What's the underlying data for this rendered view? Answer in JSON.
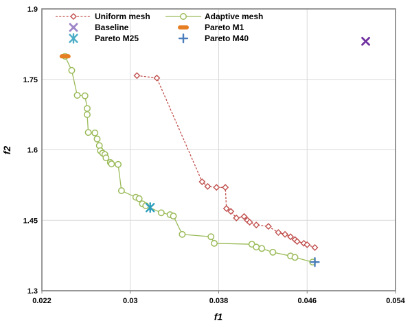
{
  "chart_data": {
    "type": "scatter",
    "title": "",
    "xlabel": "f1",
    "ylabel": "f2",
    "xlim": [
      0.022,
      0.054
    ],
    "ylim": [
      1.3,
      1.9
    ],
    "x_ticks": [
      0.022,
      0.03,
      0.038,
      0.046,
      0.054
    ],
    "x_tick_labels": [
      "0.022",
      "0.03",
      "0.038",
      "0.046",
      "0.054"
    ],
    "y_ticks": [
      1.3,
      1.45,
      1.6,
      1.75,
      1.9
    ],
    "y_tick_labels": [
      "1.3",
      "1.45",
      "1.6",
      "1.75",
      "1.9"
    ],
    "grid": true,
    "legend_position": "inside-top-left",
    "colors": {
      "grid": "#D9D9D9",
      "border": "#7F7F7F",
      "text": "#000000",
      "background": "#FFFFFF"
    },
    "series": [
      {
        "name": "Uniform mesh",
        "marker": "diamond-open",
        "line": "dashed",
        "color": "#C0504D",
        "points": [
          [
            0.0306,
            1.758
          ],
          [
            0.0324,
            1.753
          ],
          [
            0.0365,
            1.532
          ],
          [
            0.037,
            1.522
          ],
          [
            0.0378,
            1.52
          ],
          [
            0.0386,
            1.52
          ],
          [
            0.0387,
            1.475
          ],
          [
            0.0391,
            1.469
          ],
          [
            0.0396,
            1.455
          ],
          [
            0.0403,
            1.458
          ],
          [
            0.0406,
            1.45
          ],
          [
            0.0408,
            1.446
          ],
          [
            0.0414,
            1.44
          ],
          [
            0.0425,
            1.437
          ],
          [
            0.0434,
            1.424
          ],
          [
            0.044,
            1.42
          ],
          [
            0.0445,
            1.415
          ],
          [
            0.0449,
            1.409
          ],
          [
            0.0451,
            1.405
          ],
          [
            0.0457,
            1.401
          ],
          [
            0.046,
            1.398
          ],
          [
            0.0467,
            1.392
          ]
        ]
      },
      {
        "name": "Adaptive mesh",
        "marker": "circle-open",
        "line": "solid",
        "color": "#9BBB59",
        "points": [
          [
            0.0241,
            1.799
          ],
          [
            0.0247,
            1.769
          ],
          [
            0.0252,
            1.716
          ],
          [
            0.0259,
            1.715
          ],
          [
            0.0261,
            1.688
          ],
          [
            0.0261,
            1.675
          ],
          [
            0.0262,
            1.637
          ],
          [
            0.0268,
            1.636
          ],
          [
            0.027,
            1.623
          ],
          [
            0.0272,
            1.609
          ],
          [
            0.0273,
            1.598
          ],
          [
            0.0275,
            1.593
          ],
          [
            0.0277,
            1.59
          ],
          [
            0.0278,
            1.583
          ],
          [
            0.0282,
            1.573
          ],
          [
            0.0283,
            1.57
          ],
          [
            0.0289,
            1.569
          ],
          [
            0.0292,
            1.513
          ],
          [
            0.0305,
            1.499
          ],
          [
            0.0308,
            1.496
          ],
          [
            0.0311,
            1.485
          ],
          [
            0.0314,
            1.481
          ],
          [
            0.0328,
            1.466
          ],
          [
            0.0336,
            1.462
          ],
          [
            0.0339,
            1.459
          ],
          [
            0.0347,
            1.42
          ],
          [
            0.0373,
            1.415
          ],
          [
            0.0376,
            1.401
          ],
          [
            0.041,
            1.399
          ],
          [
            0.0414,
            1.393
          ],
          [
            0.0419,
            1.39
          ],
          [
            0.0429,
            1.382
          ],
          [
            0.0445,
            1.374
          ],
          [
            0.0449,
            1.371
          ],
          [
            0.0465,
            1.361
          ]
        ]
      },
      {
        "name": "Baseline",
        "marker": "x",
        "line": "none",
        "color": "#7030A0",
        "legend_color": "#9D85C8",
        "points": [
          [
            0.0513,
            1.831
          ]
        ]
      },
      {
        "name": "Pareto M1",
        "marker": "thick-dash",
        "line": "none",
        "color": "#E67E22",
        "points": [
          [
            0.0241,
            1.799
          ]
        ]
      },
      {
        "name": "Pareto M25",
        "marker": "star",
        "line": "none",
        "color": "#2C9EBC",
        "legend_color": "#4BACC6",
        "points": [
          [
            0.0318,
            1.477
          ]
        ]
      },
      {
        "name": "Pareto M40",
        "marker": "plus",
        "line": "none",
        "color": "#4A7EBB",
        "points": [
          [
            0.0467,
            1.361
          ]
        ]
      }
    ]
  }
}
